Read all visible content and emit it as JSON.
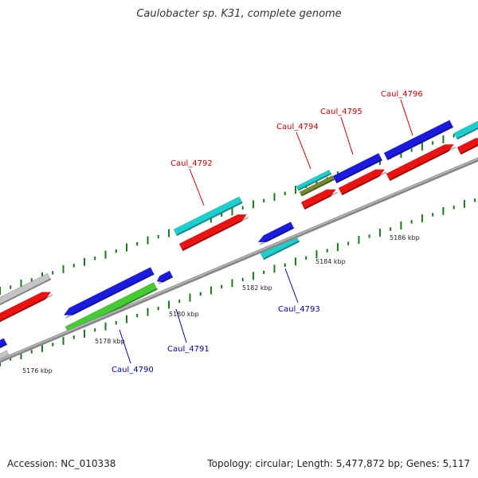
{
  "title": "Caulobacter sp. K31, complete genome",
  "footer": {
    "accession": "Accession: NC_010338",
    "summary": "Topology: circular; Length: 5,477,872 bp; Genes: 5,117"
  },
  "colors": {
    "red": "#ee1111",
    "blue": "#1a1ae0",
    "cyan": "#1ccfcf",
    "green": "#44cc33",
    "olive": "#7a8a2a",
    "grey": "#c4c4c4",
    "backbone": "#888888",
    "tick": "#1a7a1a",
    "label_top": "#cc0000",
    "label_bottom": "#0000aa"
  },
  "kbp_labels": [
    "5176 kbp",
    "5178 kbp",
    "5180 kbp",
    "5182 kbp",
    "5184 kbp",
    "5186 kbp"
  ],
  "gene_labels_top": [
    "Caul_4792",
    "Caul_4794",
    "Caul_4795",
    "Caul_4796"
  ],
  "gene_labels_bottom": [
    "Caul_4790",
    "Caul_4791",
    "Caul_4793"
  ]
}
